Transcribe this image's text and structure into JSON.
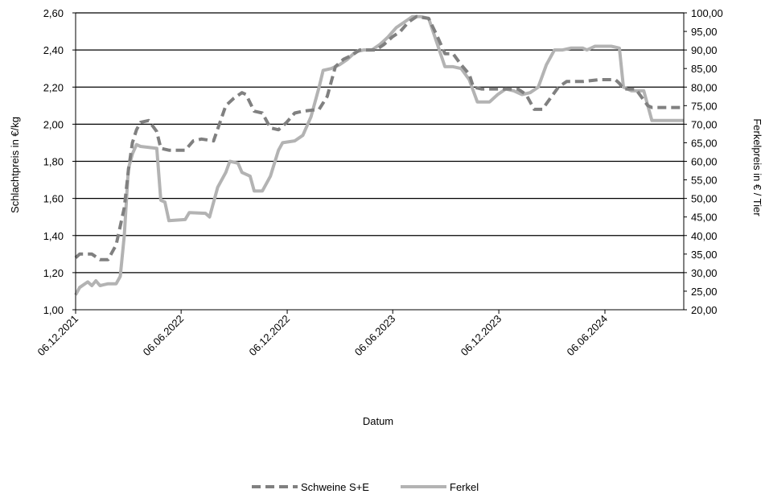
{
  "chart_data": {
    "type": "line",
    "xlabel": "Datum",
    "ylabel_left": "Schlachtpreis in €/kg",
    "ylabel_right": "Ferkelpreis in € / Tier",
    "x_range": [
      "2021-12-06",
      "2024-10-20"
    ],
    "x_ticks": [
      "06.12.2021",
      "06.06.2022",
      "06.12.2022",
      "06.06.2023",
      "06.12.2023",
      "06.06.2024"
    ],
    "ylim_left": [
      1.0,
      2.6
    ],
    "ylim_right": [
      20,
      100
    ],
    "y_ticks_left": [
      "1,00",
      "1,20",
      "1,40",
      "1,60",
      "1,80",
      "2,00",
      "2,20",
      "2,40",
      "2,60"
    ],
    "y_ticks_right": [
      "20,00",
      "25,00",
      "30,00",
      "35,00",
      "40,00",
      "45,00",
      "50,00",
      "55,00",
      "60,00",
      "65,00",
      "70,00",
      "75,00",
      "80,00",
      "85,00",
      "90,00",
      "95,00",
      "100,00"
    ],
    "grid": "horizontal",
    "legend_position": "bottom",
    "series": [
      {
        "name": "Schweine S+E",
        "axis": "left",
        "color": "#808080",
        "style": "dashed",
        "points": [
          [
            "2021-12-06",
            1.28
          ],
          [
            "2021-12-13",
            1.3
          ],
          [
            "2022-01-03",
            1.3
          ],
          [
            "2022-01-17",
            1.27
          ],
          [
            "2022-01-31",
            1.27
          ],
          [
            "2022-02-14",
            1.35
          ],
          [
            "2022-02-28",
            1.55
          ],
          [
            "2022-03-07",
            1.75
          ],
          [
            "2022-03-14",
            1.9
          ],
          [
            "2022-03-21",
            1.97
          ],
          [
            "2022-03-28",
            2.01
          ],
          [
            "2022-04-11",
            2.02
          ],
          [
            "2022-04-25",
            1.96
          ],
          [
            "2022-05-02",
            1.87
          ],
          [
            "2022-05-16",
            1.86
          ],
          [
            "2022-06-13",
            1.86
          ],
          [
            "2022-06-27",
            1.91
          ],
          [
            "2022-07-11",
            1.92
          ],
          [
            "2022-08-01",
            1.91
          ],
          [
            "2022-08-22",
            2.1
          ],
          [
            "2022-09-05",
            2.14
          ],
          [
            "2022-09-19",
            2.17
          ],
          [
            "2022-09-26",
            2.16
          ],
          [
            "2022-10-10",
            2.07
          ],
          [
            "2022-10-24",
            2.06
          ],
          [
            "2022-11-07",
            1.98
          ],
          [
            "2022-11-21",
            1.97
          ],
          [
            "2022-12-05",
            2.01
          ],
          [
            "2022-12-19",
            2.06
          ],
          [
            "2023-01-02",
            2.07
          ],
          [
            "2023-01-30",
            2.08
          ],
          [
            "2023-02-13",
            2.15
          ],
          [
            "2023-02-27",
            2.31
          ],
          [
            "2023-03-13",
            2.35
          ],
          [
            "2023-03-27",
            2.37
          ],
          [
            "2023-04-10",
            2.4
          ],
          [
            "2023-05-08",
            2.4
          ],
          [
            "2023-05-22",
            2.43
          ],
          [
            "2023-06-05",
            2.47
          ],
          [
            "2023-06-19",
            2.5
          ],
          [
            "2023-07-03",
            2.55
          ],
          [
            "2023-07-17",
            2.58
          ],
          [
            "2023-08-07",
            2.57
          ],
          [
            "2023-08-21",
            2.48
          ],
          [
            "2023-09-04",
            2.38
          ],
          [
            "2023-09-18",
            2.38
          ],
          [
            "2023-10-02",
            2.32
          ],
          [
            "2023-10-16",
            2.27
          ],
          [
            "2023-10-23",
            2.2
          ],
          [
            "2023-11-06",
            2.19
          ],
          [
            "2023-12-11",
            2.19
          ],
          [
            "2024-01-08",
            2.19
          ],
          [
            "2024-01-22",
            2.16
          ],
          [
            "2024-02-05",
            2.08
          ],
          [
            "2024-02-19",
            2.08
          ],
          [
            "2024-03-04",
            2.14
          ],
          [
            "2024-03-18",
            2.2
          ],
          [
            "2024-04-01",
            2.23
          ],
          [
            "2024-04-29",
            2.23
          ],
          [
            "2024-05-27",
            2.24
          ],
          [
            "2024-06-24",
            2.24
          ],
          [
            "2024-07-01",
            2.22
          ],
          [
            "2024-07-08",
            2.19
          ],
          [
            "2024-07-29",
            2.19
          ],
          [
            "2024-08-19",
            2.1
          ],
          [
            "2024-08-26",
            2.09
          ],
          [
            "2024-10-20",
            2.09
          ]
        ]
      },
      {
        "name": "Ferkel",
        "axis": "right",
        "color": "#b3b3b3",
        "style": "solid",
        "points": [
          [
            "2021-12-06",
            24.0
          ],
          [
            "2021-12-13",
            26.0
          ],
          [
            "2021-12-27",
            27.5
          ],
          [
            "2022-01-03",
            26.5
          ],
          [
            "2022-01-10",
            27.8
          ],
          [
            "2022-01-17",
            26.5
          ],
          [
            "2022-01-31",
            27.0
          ],
          [
            "2022-02-14",
            27.0
          ],
          [
            "2022-02-21",
            29.0
          ],
          [
            "2022-02-28",
            40.0
          ],
          [
            "2022-03-07",
            58.0
          ],
          [
            "2022-03-14",
            62.0
          ],
          [
            "2022-03-21",
            64.5
          ],
          [
            "2022-03-28",
            64.0
          ],
          [
            "2022-04-25",
            63.5
          ],
          [
            "2022-05-02",
            49.5
          ],
          [
            "2022-05-09",
            49.0
          ],
          [
            "2022-05-16",
            44.0
          ],
          [
            "2022-06-13",
            44.3
          ],
          [
            "2022-06-20",
            46.2
          ],
          [
            "2022-07-18",
            46.0
          ],
          [
            "2022-07-25",
            45.0
          ],
          [
            "2022-08-08",
            53.0
          ],
          [
            "2022-08-22",
            57.0
          ],
          [
            "2022-08-29",
            60.0
          ],
          [
            "2022-09-12",
            59.5
          ],
          [
            "2022-09-19",
            57.0
          ],
          [
            "2022-10-03",
            56.0
          ],
          [
            "2022-10-10",
            52.0
          ],
          [
            "2022-10-24",
            52.0
          ],
          [
            "2022-11-07",
            56.0
          ],
          [
            "2022-11-21",
            63.0
          ],
          [
            "2022-11-28",
            65.0
          ],
          [
            "2022-12-19",
            65.5
          ],
          [
            "2023-01-02",
            67.0
          ],
          [
            "2023-01-16",
            72.0
          ],
          [
            "2023-01-30",
            80.0
          ],
          [
            "2023-02-06",
            84.5
          ],
          [
            "2023-02-20",
            85.0
          ],
          [
            "2023-03-06",
            86.0
          ],
          [
            "2023-03-20",
            87.5
          ],
          [
            "2023-04-03",
            89.5
          ],
          [
            "2023-04-17",
            90.0
          ],
          [
            "2023-05-01",
            90.0
          ],
          [
            "2023-05-15",
            91.5
          ],
          [
            "2023-05-29",
            93.5
          ],
          [
            "2023-06-12",
            96.0
          ],
          [
            "2023-06-26",
            97.5
          ],
          [
            "2023-07-10",
            99.0
          ],
          [
            "2023-07-24",
            99.0
          ],
          [
            "2023-08-07",
            98.5
          ],
          [
            "2023-08-21",
            92.0
          ],
          [
            "2023-09-04",
            85.5
          ],
          [
            "2023-09-18",
            85.5
          ],
          [
            "2023-10-02",
            85.0
          ],
          [
            "2023-10-16",
            82.0
          ],
          [
            "2023-10-30",
            76.0
          ],
          [
            "2023-11-20",
            76.0
          ],
          [
            "2023-12-04",
            78.0
          ],
          [
            "2023-12-18",
            79.5
          ],
          [
            "2024-01-01",
            79.0
          ],
          [
            "2024-01-15",
            78.0
          ],
          [
            "2024-01-29",
            78.5
          ],
          [
            "2024-02-12",
            80.0
          ],
          [
            "2024-02-26",
            86.0
          ],
          [
            "2024-03-11",
            90.0
          ],
          [
            "2024-03-25",
            90.0
          ],
          [
            "2024-04-08",
            90.5
          ],
          [
            "2024-04-29",
            90.5
          ],
          [
            "2024-05-06",
            90.0
          ],
          [
            "2024-05-13",
            90.5
          ],
          [
            "2024-05-20",
            91.0
          ],
          [
            "2024-06-17",
            91.0
          ],
          [
            "2024-07-01",
            90.5
          ],
          [
            "2024-07-08",
            80.0
          ],
          [
            "2024-07-22",
            79.0
          ],
          [
            "2024-08-12",
            79.0
          ],
          [
            "2024-08-26",
            71.0
          ],
          [
            "2024-09-09",
            71.0
          ],
          [
            "2024-10-20",
            71.0
          ]
        ]
      }
    ]
  }
}
